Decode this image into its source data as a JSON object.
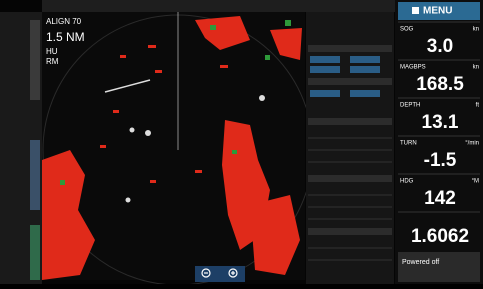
{
  "header": {
    "menu": "MENU"
  },
  "radar": {
    "range": "1.5 NM",
    "mode": "HU",
    "motion": "RM"
  },
  "instruments": [
    {
      "label": "SOG",
      "unit": "kn",
      "value": "3.0"
    },
    {
      "label": "MAGBPS",
      "unit": "kn",
      "value": "168.5"
    },
    {
      "label": "DEPTH",
      "unit": "ft",
      "value": "13.1"
    },
    {
      "label": "TURN",
      "unit": "°/min",
      "value": "-1.5"
    },
    {
      "label": "HDG",
      "unit": "°M",
      "value": "142"
    },
    {
      "label": "",
      "unit": "",
      "value": "1.6062"
    }
  ],
  "status": "Powered off"
}
